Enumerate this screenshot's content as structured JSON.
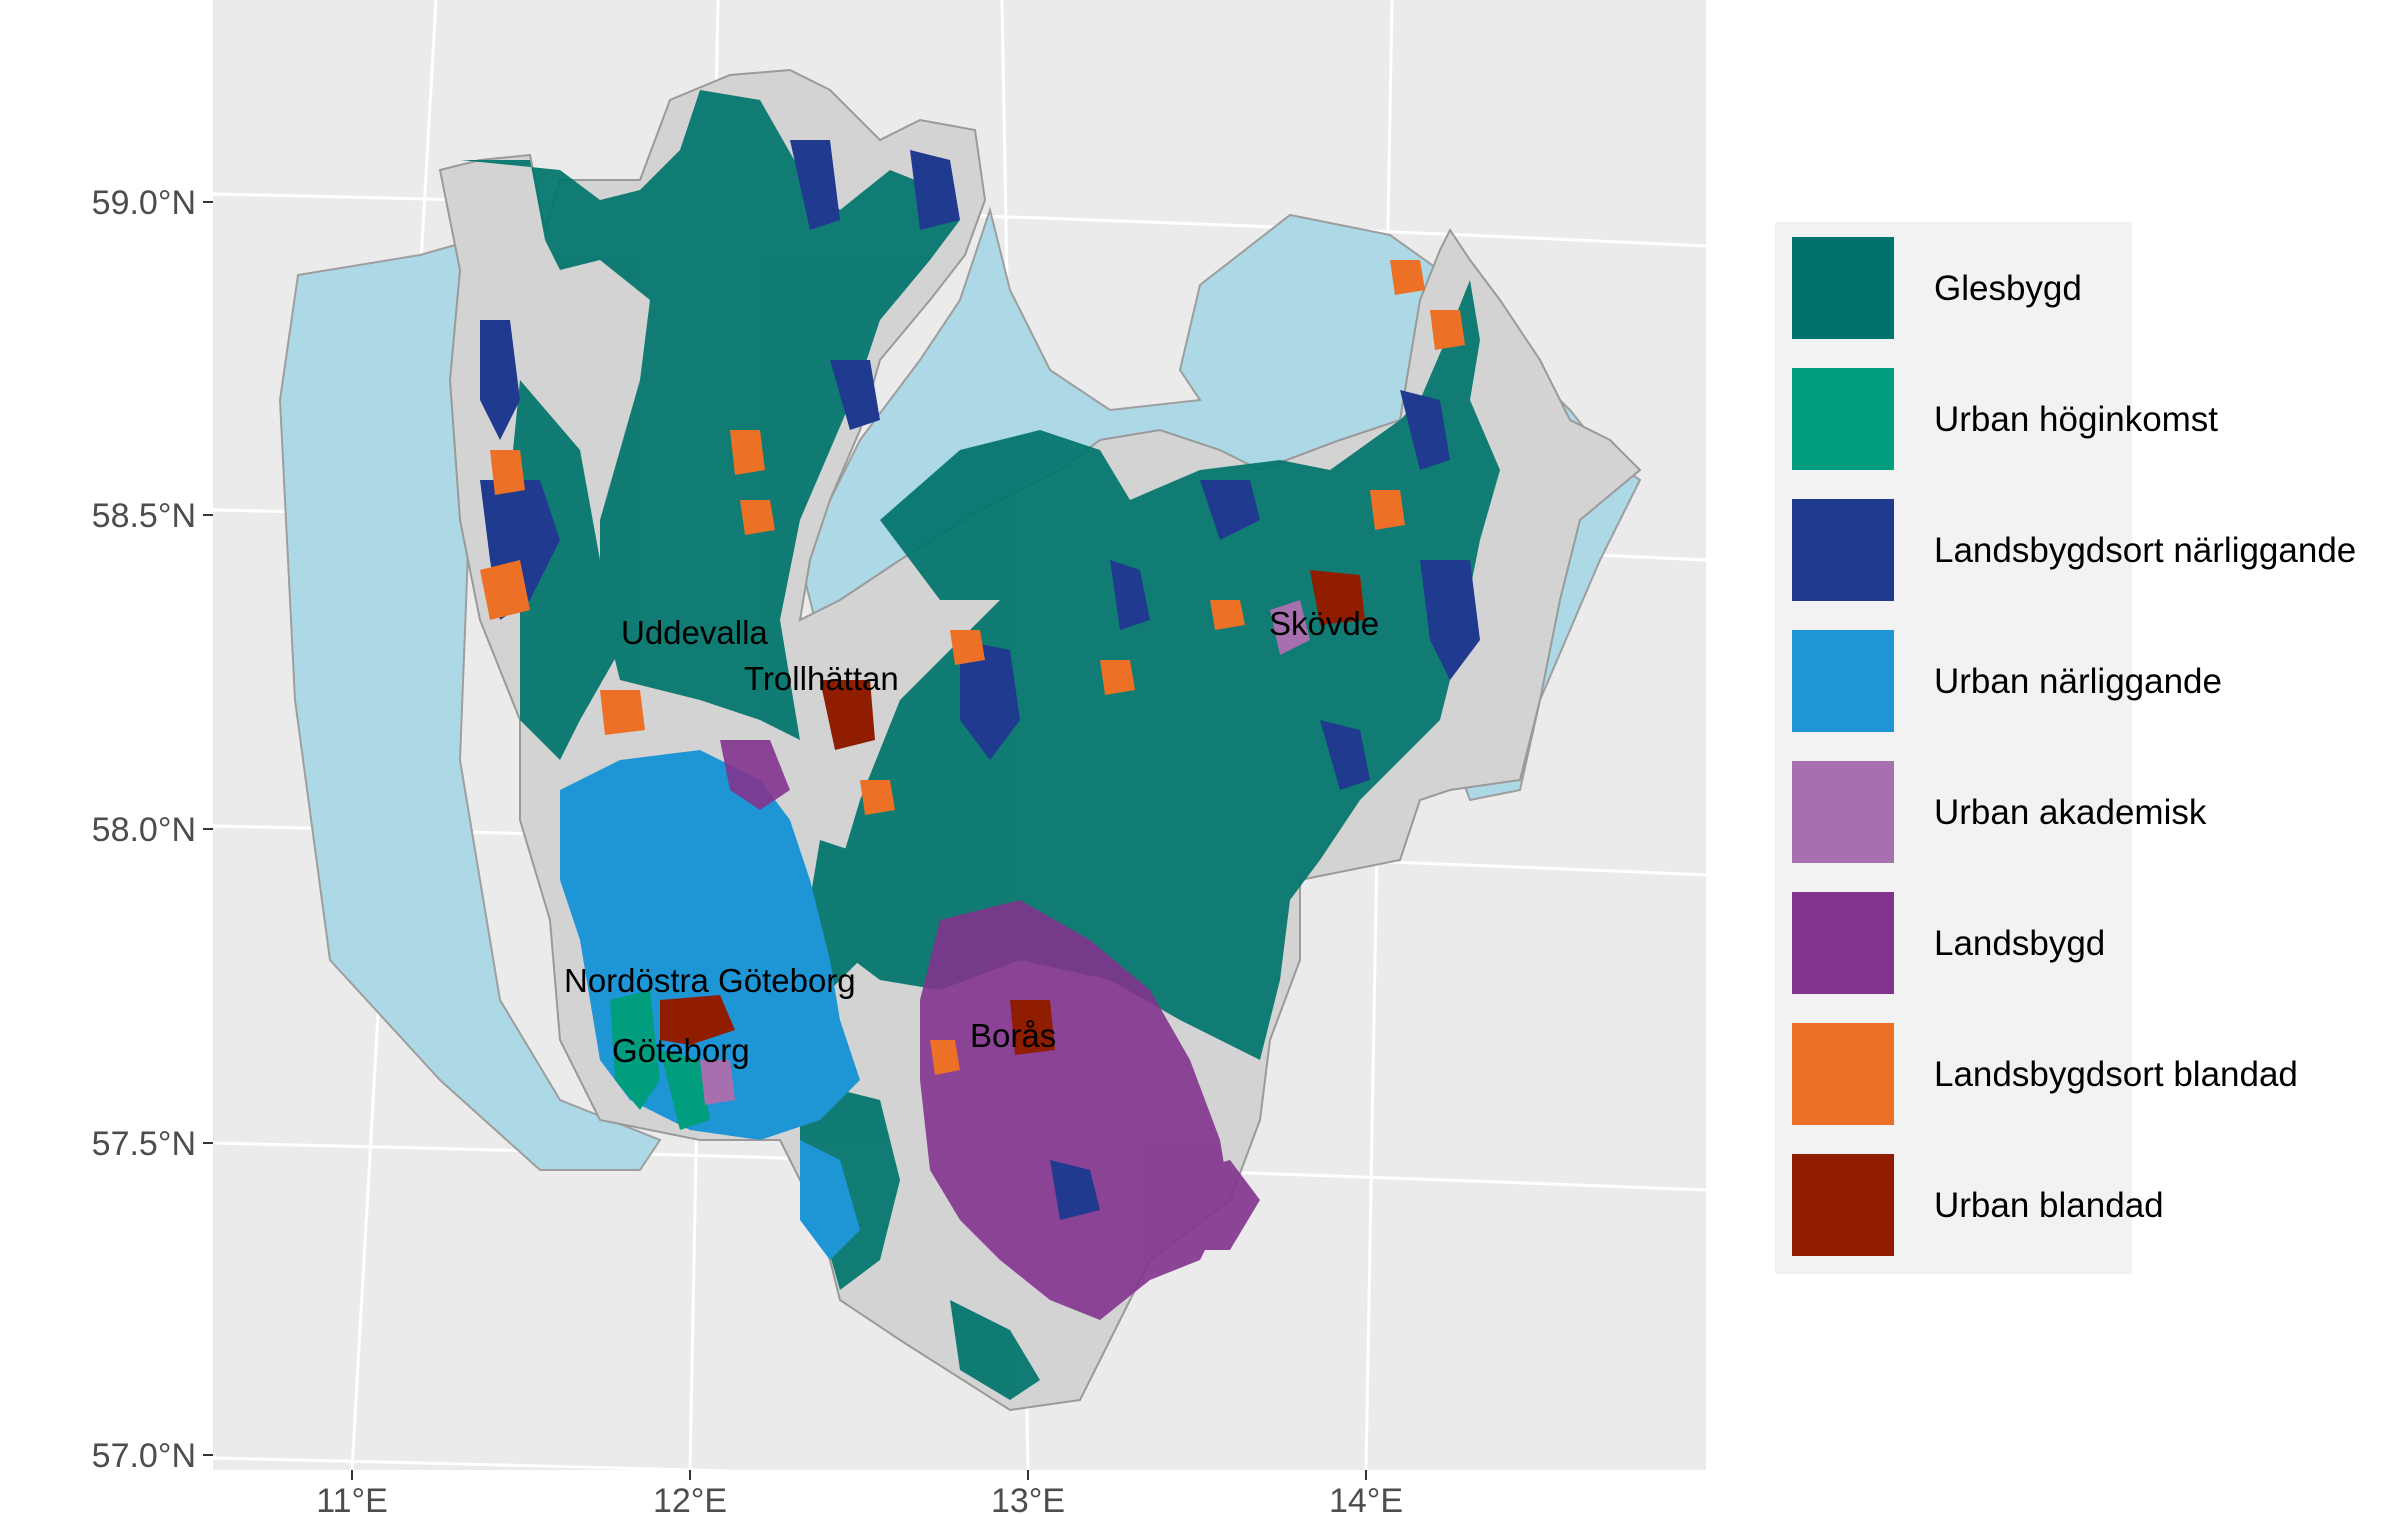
{
  "map": {
    "y_axis_labels": [
      "59.0°N",
      "58.5°N",
      "58.0°N",
      "57.5°N",
      "57.0°N"
    ],
    "x_axis_labels": [
      "11°E",
      "12°E",
      "13°E",
      "14°E"
    ],
    "cities": {
      "uddevalla": "Uddevalla",
      "trollhattan": "Trollhättan",
      "skovde": "Skövde",
      "nordostra_goteborg": "Nordöstra Göteborg",
      "goteborg": "Göteborg",
      "boras": "Borås"
    }
  },
  "legend": {
    "items": [
      {
        "label": "Glesbygd",
        "color": "#00746A"
      },
      {
        "label": "Urban höginkomst",
        "color": "#009E7E"
      },
      {
        "label": "Landsbygdsort närliggande",
        "color": "#1F3A8F"
      },
      {
        "label": "Urban närliggande",
        "color": "#1E96D6"
      },
      {
        "label": "Urban akademisk",
        "color": "#A66FAD"
      },
      {
        "label": "Landsbygd",
        "color": "#82338E"
      },
      {
        "label": "Landsbygdsort blandad",
        "color": "#EC7026"
      },
      {
        "label": "Urban blandad",
        "color": "#901D00"
      }
    ]
  },
  "colors": {
    "panel_background": "#EBEBEB",
    "gridline": "#FFFFFF",
    "water": "#ADD8E6",
    "land": "#D3D3D3",
    "legend_background": "#F2F2F2"
  }
}
